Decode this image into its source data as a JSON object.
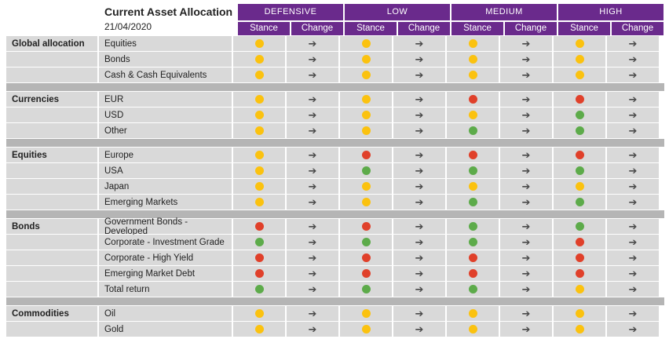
{
  "header": {
    "title": "Current Asset Allocation",
    "date": "21/04/2020"
  },
  "colors": {
    "accent_purple": "#6a2a8c",
    "stance_yellow": "#fbc20f",
    "stance_red": "#e0402a",
    "stance_green": "#5dab4a"
  },
  "profiles": [
    {
      "name": "DEFENSIVE",
      "stance_label": "Stance",
      "change_label": "Change"
    },
    {
      "name": "LOW",
      "stance_label": "Stance",
      "change_label": "Change"
    },
    {
      "name": "MEDIUM",
      "stance_label": "Stance",
      "change_label": "Change"
    },
    {
      "name": "HIGH",
      "stance_label": "Stance",
      "change_label": "Change"
    }
  ],
  "change_icon": "right-arrow-icon",
  "change_glyph": "➔",
  "sections": [
    {
      "group": "Global allocation",
      "rows": [
        {
          "asset": "Equities",
          "stances": [
            "yellow",
            "yellow",
            "yellow",
            "yellow"
          ]
        },
        {
          "asset": "Bonds",
          "stances": [
            "yellow",
            "yellow",
            "yellow",
            "yellow"
          ]
        },
        {
          "asset": "Cash & Cash Equivalents",
          "stances": [
            "yellow",
            "yellow",
            "yellow",
            "yellow"
          ]
        }
      ]
    },
    {
      "group": "Currencies",
      "rows": [
        {
          "asset": "EUR",
          "stances": [
            "yellow",
            "yellow",
            "red",
            "red"
          ]
        },
        {
          "asset": "USD",
          "stances": [
            "yellow",
            "yellow",
            "yellow",
            "green"
          ]
        },
        {
          "asset": "Other",
          "stances": [
            "yellow",
            "yellow",
            "green",
            "green"
          ]
        }
      ]
    },
    {
      "group": "Equities",
      "rows": [
        {
          "asset": "Europe",
          "stances": [
            "yellow",
            "red",
            "red",
            "red"
          ]
        },
        {
          "asset": "USA",
          "stances": [
            "yellow",
            "green",
            "green",
            "green"
          ]
        },
        {
          "asset": "Japan",
          "stances": [
            "yellow",
            "yellow",
            "yellow",
            "yellow"
          ]
        },
        {
          "asset": "Emerging Markets",
          "stances": [
            "yellow",
            "yellow",
            "green",
            "green"
          ]
        }
      ]
    },
    {
      "group": "Bonds",
      "rows": [
        {
          "asset": "Government Bonds - Developed",
          "stances": [
            "red",
            "red",
            "green",
            "green"
          ]
        },
        {
          "asset": "Corporate - Investment Grade",
          "stances": [
            "green",
            "green",
            "green",
            "red"
          ]
        },
        {
          "asset": "Corporate - High Yield",
          "stances": [
            "red",
            "red",
            "red",
            "red"
          ]
        },
        {
          "asset": "Emerging Market Debt",
          "stances": [
            "red",
            "red",
            "red",
            "red"
          ]
        },
        {
          "asset": "Total return",
          "stances": [
            "green",
            "green",
            "green",
            "yellow"
          ]
        }
      ]
    },
    {
      "group": "Commodities",
      "rows": [
        {
          "asset": "Oil",
          "stances": [
            "yellow",
            "yellow",
            "yellow",
            "yellow"
          ]
        },
        {
          "asset": "Gold",
          "stances": [
            "yellow",
            "yellow",
            "yellow",
            "yellow"
          ]
        }
      ]
    }
  ]
}
